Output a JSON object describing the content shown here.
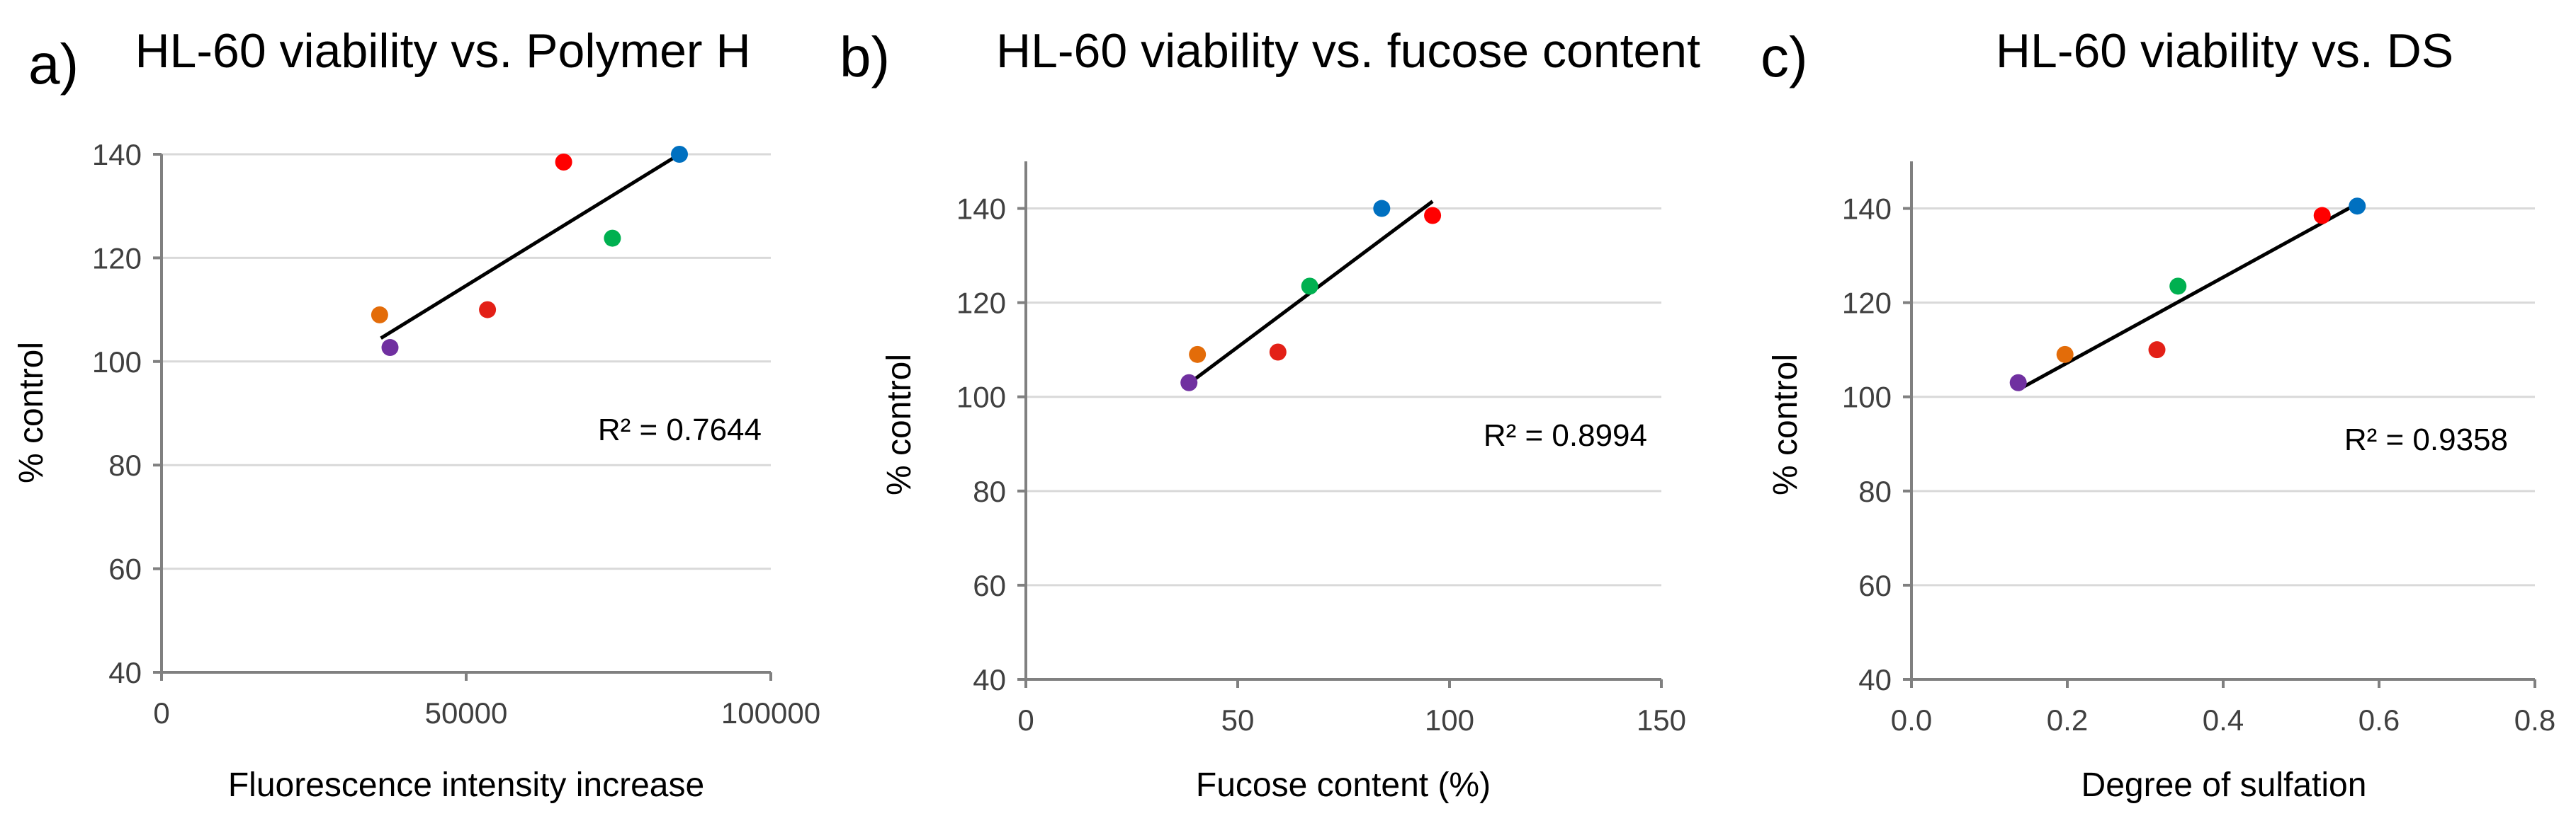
{
  "chart_data": [
    {
      "type": "scatter",
      "panel": "a)",
      "title": "HL-60 viability vs. Polymer H",
      "xlabel": "Fluorescence intensity increase",
      "ylabel": "% control",
      "xlim": [
        0,
        100000
      ],
      "ylim": [
        40,
        140
      ],
      "xticks": [
        0,
        50000,
        100000
      ],
      "xtick_labels": [
        "0",
        "50000",
        "100000"
      ],
      "yticks": [
        40,
        60,
        80,
        100,
        120,
        140
      ],
      "ytick_labels": [
        "40",
        "60",
        "80",
        "100",
        "120",
        "140"
      ],
      "grid": "horizontal",
      "points": [
        {
          "x": 35800,
          "y": 109,
          "color": "#E36C09"
        },
        {
          "x": 37500,
          "y": 102.7,
          "color": "#7030A0"
        },
        {
          "x": 53500,
          "y": 110,
          "color": "#E32017"
        },
        {
          "x": 66000,
          "y": 138.5,
          "color": "#FF0000"
        },
        {
          "x": 74000,
          "y": 123.8,
          "color": "#00B050"
        },
        {
          "x": 85000,
          "y": 140,
          "color": "#0070C0"
        }
      ],
      "trendline": {
        "x": [
          36000,
          85000
        ],
        "y": [
          104.5,
          140
        ]
      },
      "r2_label": "R² = 0.7644"
    },
    {
      "type": "scatter",
      "panel": "b)",
      "title": "HL-60 viability vs. fucose content",
      "xlabel": "Fucose content (%)",
      "ylabel": "% control",
      "xlim": [
        0,
        150
      ],
      "ylim": [
        40,
        150
      ],
      "xticks": [
        0,
        50,
        100,
        150
      ],
      "xtick_labels": [
        "0",
        "50",
        "100",
        "150"
      ],
      "yticks": [
        40,
        60,
        80,
        100,
        120,
        140
      ],
      "ytick_labels": [
        "40",
        "60",
        "80",
        "100",
        "120",
        "140"
      ],
      "grid": "horizontal",
      "points": [
        {
          "x": 38.5,
          "y": 103,
          "color": "#7030A0"
        },
        {
          "x": 40.5,
          "y": 109,
          "color": "#E36C09"
        },
        {
          "x": 59.5,
          "y": 109.5,
          "color": "#E32017"
        },
        {
          "x": 67,
          "y": 123.5,
          "color": "#00B050"
        },
        {
          "x": 84,
          "y": 140,
          "color": "#0070C0"
        },
        {
          "x": 96,
          "y": 138.5,
          "color": "#FF0000"
        }
      ],
      "trendline": {
        "x": [
          38,
          96
        ],
        "y": [
          102.5,
          141.5
        ]
      },
      "r2_label": "R² = 0.8994"
    },
    {
      "type": "scatter",
      "panel": "c)",
      "title": "HL-60 viability vs. DS",
      "xlabel": "Degree of sulfation",
      "ylabel": "% control",
      "xlim": [
        0,
        0.8
      ],
      "ylim": [
        40,
        150
      ],
      "xticks": [
        0,
        0.2,
        0.4,
        0.6,
        0.8
      ],
      "xtick_labels": [
        "0.0",
        "0.2",
        "0.4",
        "0.6",
        "0.8"
      ],
      "yticks": [
        40,
        60,
        80,
        100,
        120,
        140
      ],
      "ytick_labels": [
        "40",
        "60",
        "80",
        "100",
        "120",
        "140"
      ],
      "grid": "horizontal",
      "points": [
        {
          "x": 0.137,
          "y": 103,
          "color": "#7030A0"
        },
        {
          "x": 0.197,
          "y": 109,
          "color": "#E36C09"
        },
        {
          "x": 0.315,
          "y": 110,
          "color": "#E32017"
        },
        {
          "x": 0.342,
          "y": 123.5,
          "color": "#00B050"
        },
        {
          "x": 0.527,
          "y": 138.5,
          "color": "#FF0000"
        },
        {
          "x": 0.572,
          "y": 140.5,
          "color": "#0070C0"
        }
      ],
      "trendline": {
        "x": [
          0.137,
          0.572
        ],
        "y": [
          101.5,
          141
        ]
      },
      "r2_label": "R² = 0.9358"
    }
  ]
}
